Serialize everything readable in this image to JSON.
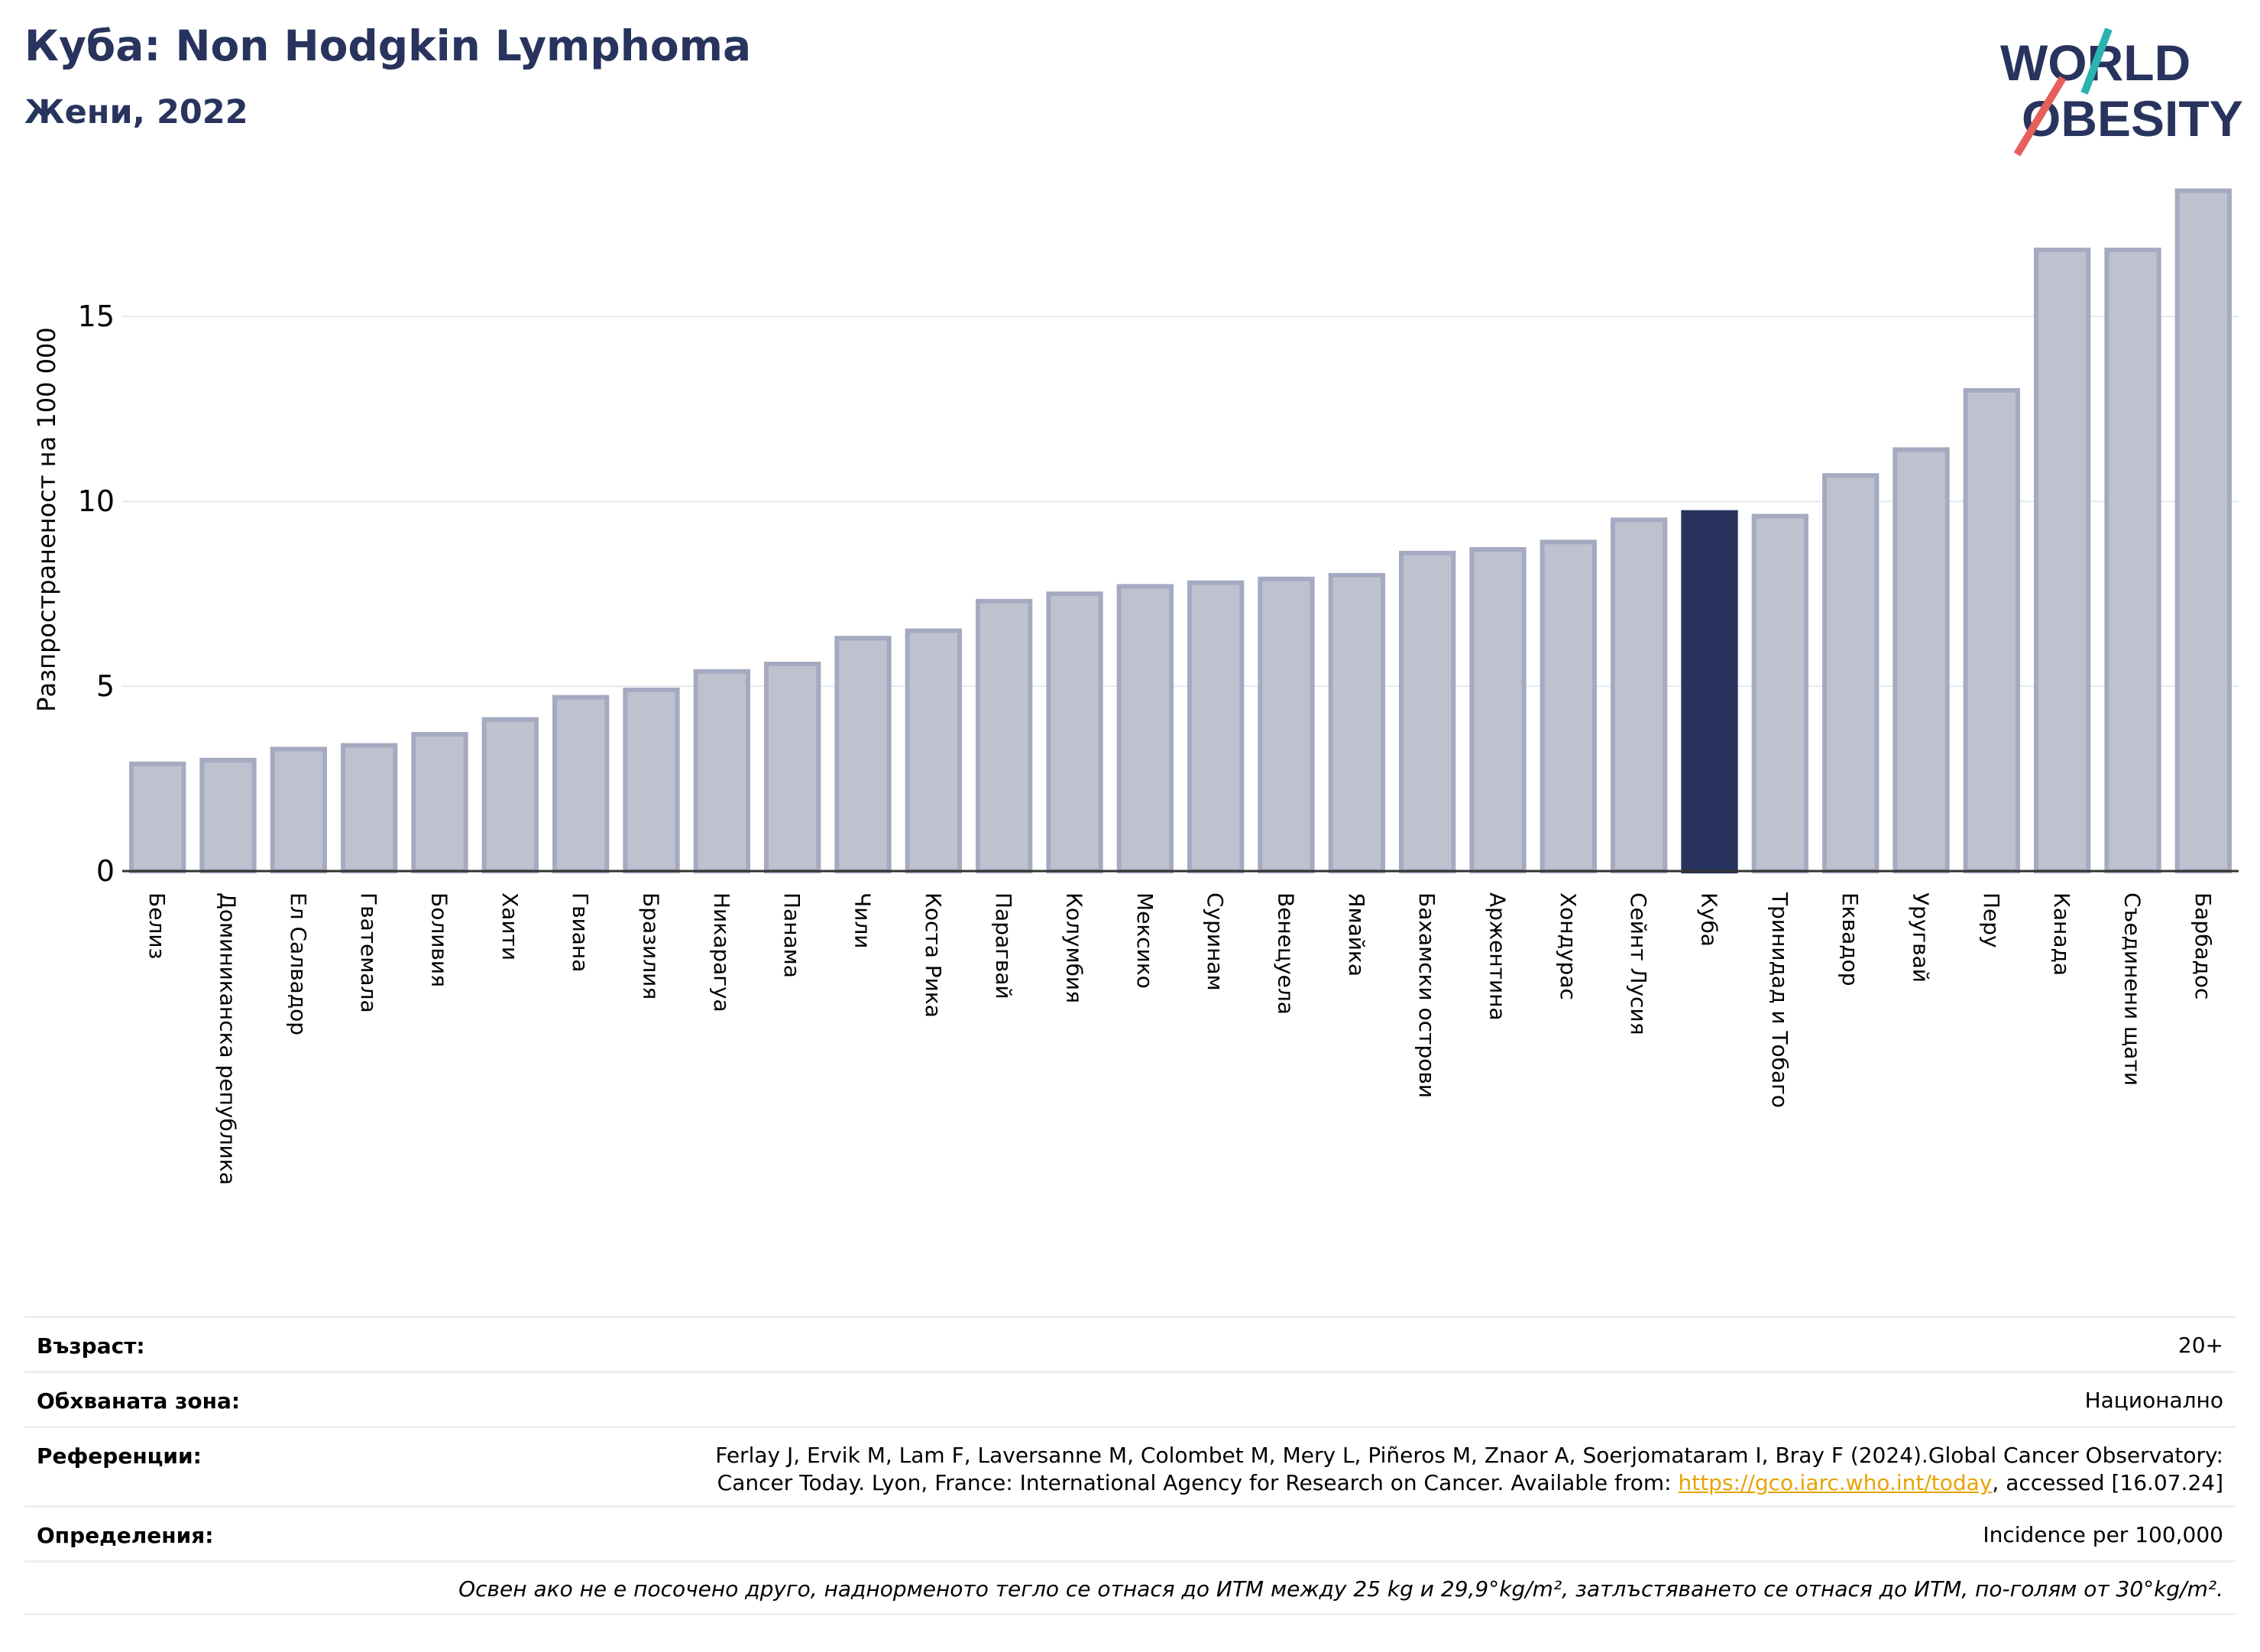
{
  "header": {
    "title": "Куба: Non Hodgkin Lymphoma",
    "subtitle": "Жени, 2022",
    "logo_line1": "WORLD",
    "logo_line2": "OBESITY"
  },
  "colors": {
    "bar": "#bec2cf",
    "bar_border": "#a5aac0",
    "highlight": "#28345e",
    "title": "#28345e",
    "grid": "#e6e8ef",
    "logo_teal": "#2bb3b0",
    "logo_red": "#e5605a"
  },
  "chart_data": {
    "type": "bar",
    "ylabel": "Разпространеност  на 100 000",
    "ylim": [
      0,
      18.6
    ],
    "yticks": [
      0,
      5,
      10,
      15
    ],
    "grid": true,
    "highlight": "Куба",
    "categories": [
      "Белиз",
      "Доминиканска република",
      "Ел Салвадор",
      "Гватемала",
      "Боливия",
      "Хаити",
      "Гвиана",
      "Бразилия",
      "Никарагуа",
      "Панама",
      "Чили",
      "Коста Рика",
      "Парагвай",
      "Колумбия",
      "Мексико",
      "Суринам",
      "Венецуела",
      "Ямайка",
      "Бахамски острови",
      "Аржентина",
      "Хондурас",
      "Сейнт Лусия",
      "Куба",
      "Тринидад и Тобаго",
      "Еквадор",
      "Уругвай",
      "Перу",
      "Канада",
      "Съединени щати",
      "Барбадос"
    ],
    "values": [
      2.9,
      3.0,
      3.3,
      3.4,
      3.7,
      4.1,
      4.7,
      4.9,
      5.4,
      5.6,
      6.3,
      6.5,
      7.3,
      7.5,
      7.7,
      7.8,
      7.9,
      8.0,
      8.6,
      8.7,
      8.9,
      9.5,
      9.7,
      9.6,
      10.7,
      11.4,
      13.0,
      16.8,
      16.8,
      18.4
    ]
  },
  "meta": {
    "age_label": "Възраст:",
    "age_value": "20+",
    "area_label": "Обхваната зона:",
    "area_value": "Национално",
    "refs_label": "Референции:",
    "refs_line1": "Ferlay J, Ervik M, Lam F, Laversanne M, Colombet M, Mery L, Piñeros M, Znaor A, Soerjomataram I, Bray F (2024).Global Cancer Observatory:",
    "refs_line2_a": "Cancer Today. Lyon, France: International Agency for Research on Cancer. Available from: ",
    "refs_link": "https://gco.iarc.who.int/today",
    "refs_line2_b": ", accessed [16.07.24]",
    "defs_label": "Определения:",
    "defs_value": "Incidence per 100,000",
    "note": "Освен ако не е посочено друго, наднорменото тегло се отнася до ИТМ между 25 kg и 29,9°kg/m², затлъстяването се отнася до ИТМ, по-голям от 30°kg/m²."
  }
}
